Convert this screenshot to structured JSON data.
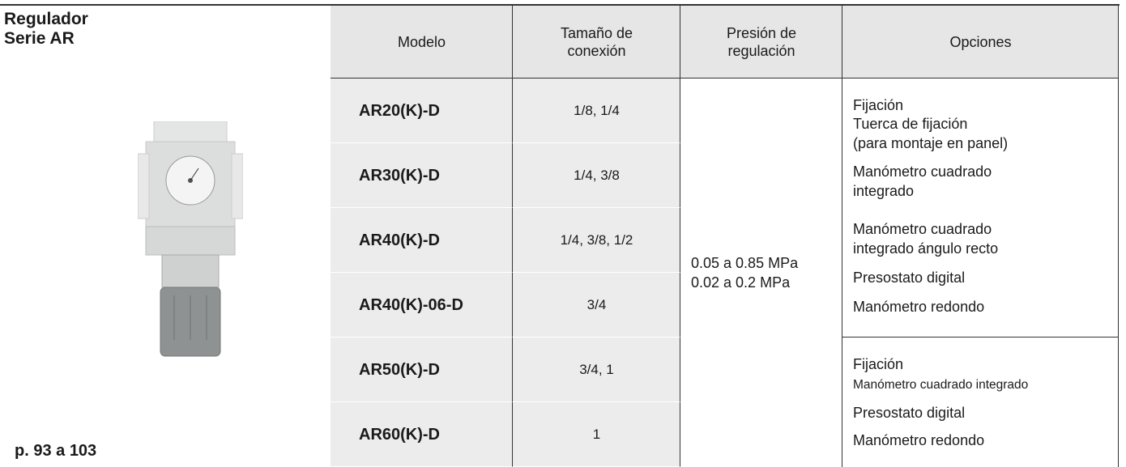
{
  "header": {
    "title": [
      "Regulador",
      "Serie AR"
    ],
    "page_ref": "p. 93 a 103"
  },
  "table": {
    "columns": [
      [
        "Modelo"
      ],
      [
        "Tamaño de",
        "conexión"
      ],
      [
        "Presión de",
        "regulación"
      ],
      [
        "Opciones"
      ]
    ],
    "rows": [
      {
        "model": "AR20(K)-D",
        "size": "1/8, 1/4"
      },
      {
        "model": "AR30(K)-D",
        "size": "1/4, 3/8"
      },
      {
        "model": "AR40(K)-D",
        "size": "1/4, 3/8, 1/2"
      },
      {
        "model": "AR40(K)-06-D",
        "size": "3/4"
      },
      {
        "model": "AR50(K)-D",
        "size": "3/4, 1"
      },
      {
        "model": "AR60(K)-D",
        "size": "1"
      }
    ],
    "pressure": [
      "0.05 a 0.85 MPa",
      "0.02 a 0.2 MPa"
    ],
    "options": [
      [
        "Fijación",
        "Tuerca de fijación",
        "(para montaje en panel)",
        "Manómetro cuadrado",
        "integrado",
        "Manómetro cuadrado",
        "integrado ángulo recto",
        "Presostato digital",
        "Manómetro redondo"
      ],
      [
        "Fijación",
        "Manómetro cuadrado integrado",
        "Presostato digital",
        "Manómetro redondo"
      ]
    ]
  }
}
